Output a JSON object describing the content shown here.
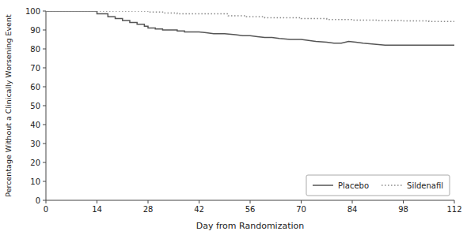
{
  "chart_data": {
    "type": "line",
    "xlabel": "Day from Randomization",
    "ylabel": "Percentage Without a Clinically Worsening Event",
    "xlim": [
      0,
      112
    ],
    "ylim": [
      0,
      100
    ],
    "xticks": [
      0,
      14,
      28,
      42,
      56,
      70,
      84,
      98,
      112
    ],
    "yticks": [
      0,
      10,
      20,
      30,
      40,
      50,
      60,
      70,
      80,
      90,
      100
    ],
    "grid": false,
    "legend": "lower right",
    "series": [
      {
        "name": "Placebo",
        "color": "#555555",
        "line_style": "solid",
        "x": [
          0,
          14,
          14,
          17,
          17,
          19,
          19,
          21,
          21,
          23,
          23,
          25,
          25,
          27,
          27,
          28,
          28,
          30,
          30,
          32,
          32,
          34,
          34,
          36,
          36,
          38,
          38,
          40,
          40,
          42,
          42,
          44,
          44,
          46,
          46,
          49,
          49,
          52,
          52,
          54,
          54,
          56,
          56,
          58,
          58,
          60,
          60,
          62,
          62,
          64,
          64,
          67,
          67,
          70,
          70,
          72,
          72,
          74,
          74,
          77,
          77,
          79,
          79,
          81,
          81,
          83,
          83,
          85,
          85,
          87,
          87,
          90,
          90,
          93,
          93,
          95,
          95,
          98,
          98,
          100,
          100,
          102,
          102,
          105,
          105,
          107,
          107,
          109,
          109,
          112
        ],
        "values": [
          100,
          100,
          98.5,
          98.5,
          97,
          97,
          96,
          96,
          95,
          95,
          94,
          94,
          93,
          93,
          92,
          92,
          91,
          91,
          90.5,
          90.5,
          90,
          90,
          90,
          90,
          89.5,
          89.5,
          89,
          89,
          89,
          89,
          89,
          88.5,
          88.5,
          88,
          88,
          88,
          88,
          87.5,
          87.5,
          87,
          87,
          87,
          87,
          86.5,
          86.5,
          86,
          86,
          86,
          86,
          85.5,
          85.5,
          85,
          85,
          85,
          85,
          84.5,
          84.5,
          84,
          84,
          83.5,
          83.5,
          83,
          83,
          83,
          83,
          84,
          84,
          83.5,
          83.5,
          83,
          83,
          82.5,
          82.5,
          82,
          82,
          82,
          82,
          82,
          82,
          82,
          82,
          82,
          82,
          82,
          82,
          82,
          82,
          82,
          82,
          82
        ]
      },
      {
        "name": "Sildenafil",
        "color": "#888888",
        "line_style": "dotted",
        "x": [
          0,
          28,
          28,
          32,
          32,
          36,
          36,
          50,
          50,
          55,
          55,
          60,
          60,
          70,
          70,
          77,
          77,
          84,
          84,
          91,
          91,
          98,
          98,
          105,
          105,
          112
        ],
        "values": [
          100,
          100,
          99.5,
          99.5,
          99,
          99,
          98.5,
          98.5,
          97.5,
          97.5,
          97,
          97,
          96.5,
          96.5,
          96,
          96,
          95.5,
          95.5,
          95.2,
          95.2,
          95,
          95,
          94.8,
          94.8,
          94.5,
          94.5
        ]
      }
    ]
  }
}
